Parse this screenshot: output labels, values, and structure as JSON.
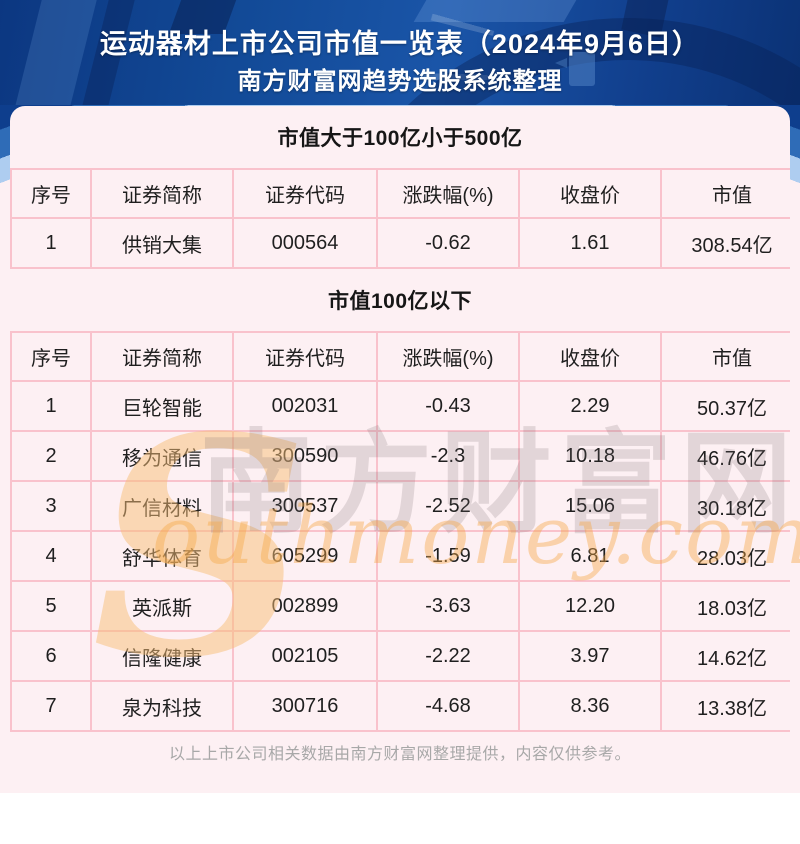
{
  "header": {
    "title_line1": "运动器材上市公司市值一览表（2024年9月6日）",
    "title_line2": "南方财富网趋势选股系统整理"
  },
  "sections": [
    {
      "title": "市值大于100亿小于500亿",
      "columns": [
        "序号",
        "证券简称",
        "证券代码",
        "涨跌幅(%)",
        "收盘价",
        "市值"
      ],
      "rows": [
        [
          "1",
          "供销大集",
          "000564",
          "-0.62",
          "1.61",
          "308.54亿"
        ]
      ]
    },
    {
      "title": "市值100亿以下",
      "columns": [
        "序号",
        "证券简称",
        "证券代码",
        "涨跌幅(%)",
        "收盘价",
        "市值"
      ],
      "rows": [
        [
          "1",
          "巨轮智能",
          "002031",
          "-0.43",
          "2.29",
          "50.37亿"
        ],
        [
          "2",
          "移为通信",
          "300590",
          "-2.3",
          "10.18",
          "46.76亿"
        ],
        [
          "3",
          "广信材料",
          "300537",
          "-2.52",
          "15.06",
          "30.18亿"
        ],
        [
          "4",
          "舒华体育",
          "605299",
          "-1.59",
          "6.81",
          "28.03亿"
        ],
        [
          "5",
          "英派斯",
          "002899",
          "-3.63",
          "12.20",
          "18.03亿"
        ],
        [
          "6",
          "信隆健康",
          "002105",
          "-2.22",
          "3.97",
          "14.62亿"
        ],
        [
          "7",
          "泉为科技",
          "300716",
          "-4.68",
          "8.36",
          "13.38亿"
        ]
      ]
    }
  ],
  "watermark": {
    "initial": "S",
    "en_rest": "outhmoney.com",
    "cn": "南方财富网"
  },
  "footer": {
    "note": "以上上市公司相关数据由南方财富网整理提供，内容仅供参考。"
  },
  "colors": {
    "header_blue": "#11458f",
    "navy": "#0e3e8d",
    "mid_blue": "#2f6cb7",
    "light_blue": "#aecdf0",
    "panel_pink": "#fdf0f3",
    "border_pink": "#f9c2cc",
    "watermark_orange": "#f6aa46",
    "text_dark": "#1f1f1f",
    "footer_gray": "#a8a8a8"
  },
  "chart_data": [
    {
      "type": "table",
      "title": "市值大于100亿小于500亿",
      "columns": [
        "序号",
        "证券简称",
        "证券代码",
        "涨跌幅(%)",
        "收盘价",
        "市值"
      ],
      "rows": [
        [
          "1",
          "供销大集",
          "000564",
          "-0.62",
          "1.61",
          "308.54亿"
        ]
      ]
    },
    {
      "type": "table",
      "title": "市值100亿以下",
      "columns": [
        "序号",
        "证券简称",
        "证券代码",
        "涨跌幅(%)",
        "收盘价",
        "市值"
      ],
      "rows": [
        [
          "1",
          "巨轮智能",
          "002031",
          "-0.43",
          "2.29",
          "50.37亿"
        ],
        [
          "2",
          "移为通信",
          "300590",
          "-2.3",
          "10.18",
          "46.76亿"
        ],
        [
          "3",
          "广信材料",
          "300537",
          "-2.52",
          "15.06",
          "30.18亿"
        ],
        [
          "4",
          "舒华体育",
          "605299",
          "-1.59",
          "6.81",
          "28.03亿"
        ],
        [
          "5",
          "英派斯",
          "002899",
          "-3.63",
          "12.20",
          "18.03亿"
        ],
        [
          "6",
          "信隆健康",
          "002105",
          "-2.22",
          "3.97",
          "14.62亿"
        ],
        [
          "7",
          "泉为科技",
          "300716",
          "-4.68",
          "8.36",
          "13.38亿"
        ]
      ]
    }
  ]
}
